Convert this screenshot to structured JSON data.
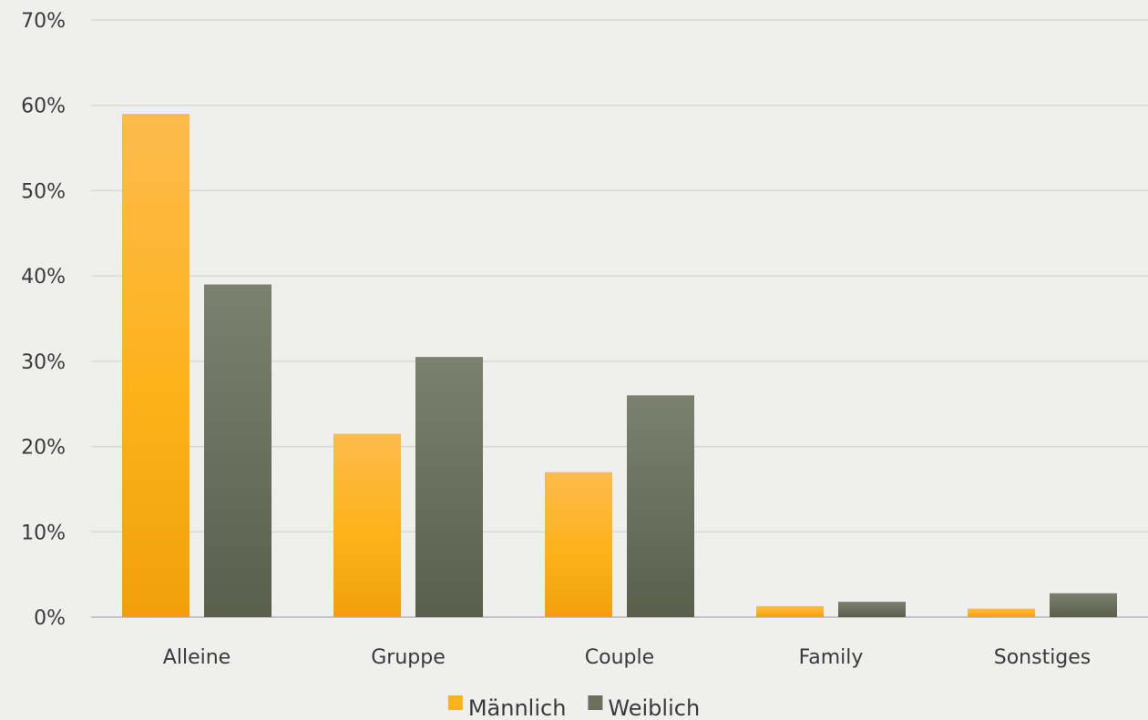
{
  "chart_data": {
    "type": "bar",
    "categories": [
      "Alleine",
      "Gruppe",
      "Couple",
      "Family",
      "Sonstiges"
    ],
    "series": [
      {
        "name": "Männlich",
        "values": [
          59,
          21.5,
          17,
          1.3,
          1.0
        ],
        "color": "#fbb21d"
      },
      {
        "name": "Weiblich",
        "values": [
          39,
          30.5,
          26,
          1.8,
          2.8
        ],
        "color": "#6b6f5e"
      }
    ],
    "ylim": [
      0,
      70
    ],
    "yticks": [
      "0%",
      "10%",
      "20%",
      "30%",
      "40%",
      "50%",
      "60%",
      "70%"
    ],
    "ytick_values": [
      0,
      10,
      20,
      30,
      40,
      50,
      60,
      70
    ],
    "grid": true,
    "legend_position": "bottom",
    "title": "",
    "xlabel": "",
    "ylabel": ""
  }
}
